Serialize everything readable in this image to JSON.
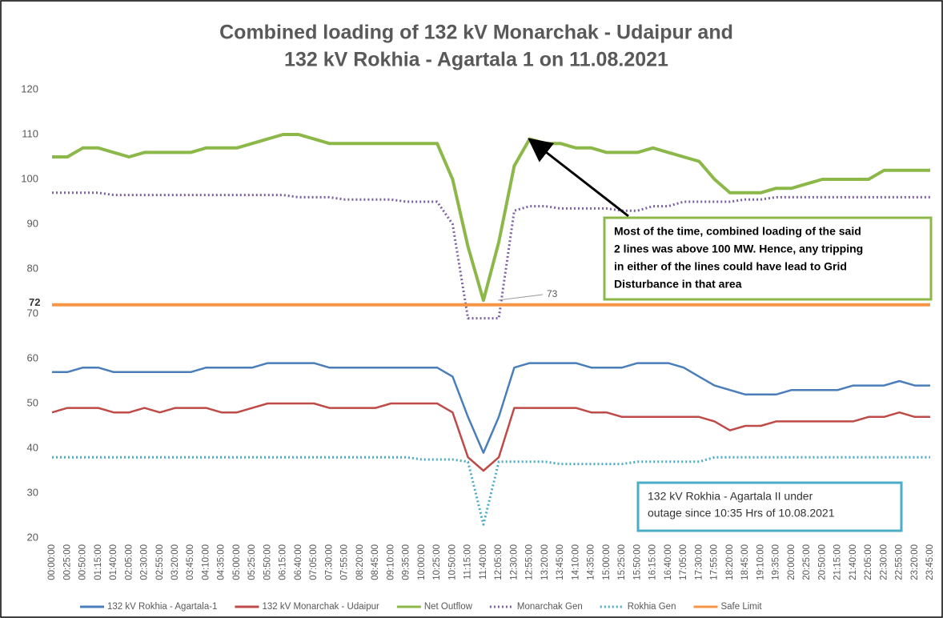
{
  "chart_data": {
    "type": "line",
    "title": [
      "Combined loading of 132 kV Monarchak - Udaipur and",
      "132 kV Rokhia - Agartala 1 on 11.08.2021"
    ],
    "categories": [
      "00:00:00",
      "00:25:00",
      "00:50:00",
      "01:15:00",
      "01:40:00",
      "02:05:00",
      "02:30:00",
      "02:55:00",
      "03:20:00",
      "03:45:00",
      "04:10:00",
      "04:35:00",
      "05:00:00",
      "05:25:00",
      "05:50:00",
      "06:15:00",
      "06:40:00",
      "07:05:00",
      "07:30:00",
      "07:55:00",
      "08:20:00",
      "08:45:00",
      "09:10:00",
      "09:35:00",
      "10:00:00",
      "10:25:00",
      "10:50:00",
      "11:15:00",
      "11:40:00",
      "12:05:00",
      "12:30:00",
      "12:55:00",
      "13:20:00",
      "13:45:00",
      "14:10:00",
      "14:35:00",
      "15:00:00",
      "15:25:00",
      "15:50:00",
      "16:15:00",
      "16:40:00",
      "17:05:00",
      "17:30:00",
      "17:55:00",
      "18:20:00",
      "18:45:00",
      "19:10:00",
      "19:35:00",
      "20:00:00",
      "20:25:00",
      "20:50:00",
      "21:15:00",
      "21:40:00",
      "22:05:00",
      "22:30:00",
      "22:55:00",
      "23:20:00",
      "23:45:00"
    ],
    "series": [
      {
        "name": "132 kV Rokhia - Agartala-1",
        "color": "#4a7ebb",
        "dash": "solid",
        "width": 2.5,
        "values": [
          57,
          57,
          58,
          58,
          57,
          57,
          57,
          57,
          57,
          57,
          58,
          58,
          58,
          58,
          59,
          59,
          59,
          59,
          58,
          58,
          58,
          58,
          58,
          58,
          58,
          58,
          56,
          47,
          39,
          47,
          58,
          59,
          59,
          59,
          59,
          58,
          58,
          58,
          59,
          59,
          59,
          58,
          56,
          54,
          53,
          52,
          52,
          52,
          53,
          53,
          53,
          53,
          54,
          54,
          54,
          55,
          54,
          54
        ]
      },
      {
        "name": "132 kV Monarchak - Udaipur",
        "color": "#be4b48",
        "dash": "solid",
        "width": 2.5,
        "values": [
          48,
          49,
          49,
          49,
          48,
          48,
          49,
          48,
          49,
          49,
          49,
          48,
          48,
          49,
          50,
          50,
          50,
          50,
          49,
          49,
          49,
          49,
          50,
          50,
          50,
          50,
          48,
          38,
          35,
          38,
          49,
          49,
          49,
          49,
          49,
          48,
          48,
          47,
          47,
          47,
          47,
          47,
          47,
          46,
          44,
          45,
          45,
          46,
          46,
          46,
          46,
          46,
          46,
          47,
          47,
          48,
          47,
          47
        ]
      },
      {
        "name": "Net Outflow",
        "color": "#8cb84a",
        "dash": "solid",
        "width": 4,
        "values": [
          105,
          105,
          107,
          107,
          106,
          105,
          106,
          106,
          106,
          106,
          107,
          107,
          107,
          108,
          109,
          110,
          110,
          109,
          108,
          108,
          108,
          108,
          108,
          108,
          108,
          108,
          100,
          85,
          73,
          86,
          103,
          109,
          108,
          108,
          107,
          107,
          106,
          106,
          106,
          107,
          106,
          105,
          104,
          100,
          97,
          97,
          97,
          98,
          98,
          99,
          100,
          100,
          100,
          100,
          102,
          102,
          102,
          102
        ]
      },
      {
        "name": "Monarchak Gen",
        "color": "#7d60a0",
        "dash": "dotted",
        "width": 3,
        "values": [
          97,
          97,
          97,
          97,
          96.5,
          96.5,
          96.5,
          96.5,
          96.5,
          96.5,
          96.5,
          96.5,
          96.5,
          96.5,
          96.5,
          96.5,
          96,
          96,
          96,
          95.5,
          95.5,
          95.5,
          95.5,
          95,
          95,
          95,
          90,
          69,
          69,
          69,
          93,
          94,
          94,
          93.5,
          93.5,
          93.5,
          93.5,
          93,
          93,
          94,
          94,
          95,
          95,
          95,
          95,
          95.5,
          95.5,
          96,
          96,
          96,
          96,
          96,
          96,
          96,
          96,
          96,
          96,
          96
        ]
      },
      {
        "name": "Rokhia Gen",
        "color": "#4bacc6",
        "dash": "dotted",
        "width": 3,
        "values": [
          38,
          38,
          38,
          38,
          38,
          38,
          38,
          38,
          38,
          38,
          38,
          38,
          38,
          38,
          38,
          38,
          38,
          38,
          38,
          38,
          38,
          38,
          38,
          38,
          37.5,
          37.5,
          37.5,
          37,
          23,
          37,
          37,
          37,
          37,
          36.5,
          36.5,
          36.5,
          36.5,
          36.5,
          37,
          37,
          37,
          37,
          37,
          38,
          38,
          38,
          38,
          38,
          38,
          38,
          38,
          38,
          38,
          38,
          38,
          38,
          38,
          38
        ]
      },
      {
        "name": "Safe Limit",
        "color": "#f79646",
        "dash": "solid",
        "width": 4,
        "values": [
          72,
          72,
          72,
          72,
          72,
          72,
          72,
          72,
          72,
          72,
          72,
          72,
          72,
          72,
          72,
          72,
          72,
          72,
          72,
          72,
          72,
          72,
          72,
          72,
          72,
          72,
          72,
          72,
          72,
          72,
          72,
          72,
          72,
          72,
          72,
          72,
          72,
          72,
          72,
          72,
          72,
          72,
          72,
          72,
          72,
          72,
          72,
          72,
          72,
          72,
          72,
          72,
          72,
          72,
          72,
          72,
          72,
          72
        ]
      }
    ],
    "ylim": [
      20,
      120
    ],
    "yticks": [
      20,
      30,
      40,
      50,
      60,
      70,
      80,
      90,
      100,
      110,
      120
    ],
    "annotations": [
      "72",
      "73"
    ],
    "boxes": [
      {
        "color": "#8cb84a",
        "lines": [
          "Most of the time, combined loading of the said",
          "2 lines was above 100 MW. Hence, any tripping",
          "in either of the lines could have lead to Grid",
          "Disturbance in that area"
        ]
      },
      {
        "color": "#4bacc6",
        "lines": [
          "132 kV Rokhia - Agartala II under",
          "outage since 10:35 Hrs of 10.08.2021"
        ]
      }
    ]
  }
}
